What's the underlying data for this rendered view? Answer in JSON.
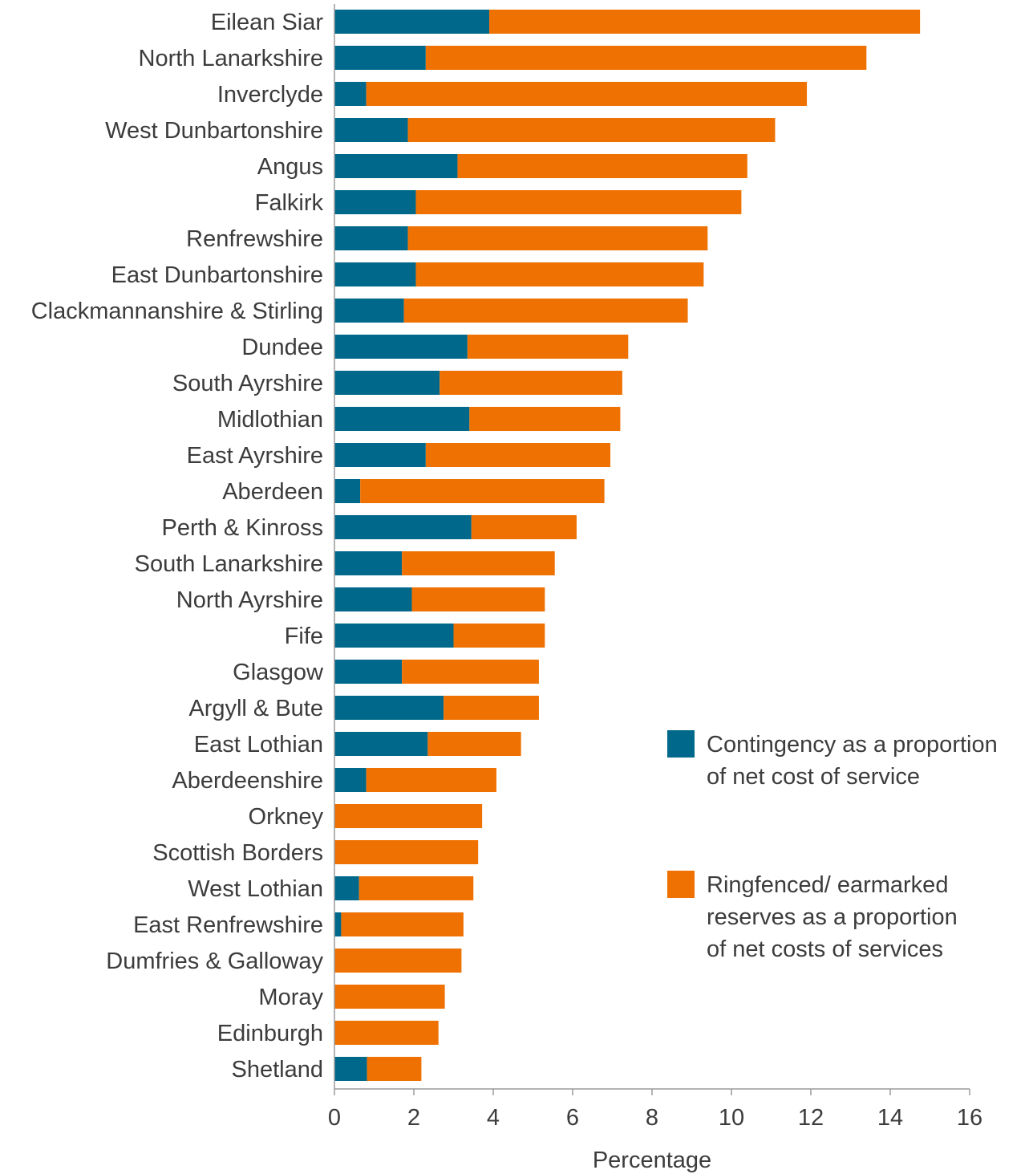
{
  "chart_data": {
    "type": "bar",
    "orientation": "horizontal",
    "stacked": true,
    "categories": [
      "Eilean Siar",
      "North Lanarkshire",
      "Inverclyde",
      "West Dunbartonshire",
      "Angus",
      "Falkirk",
      "Renfrewshire",
      "East Dunbartonshire",
      "Clackmannanshire & Stirling",
      "Dundee",
      "South Ayrshire",
      "Midlothian",
      "East Ayrshire",
      "Aberdeen",
      "Perth & Kinross",
      "South Lanarkshire",
      "North Ayrshire",
      "Fife",
      "Glasgow",
      "Argyll & Bute",
      "East Lothian",
      "Aberdeenshire",
      "Orkney",
      "Scottish Borders",
      "West Lothian",
      "East Renfrewshire",
      "Dumfries & Galloway",
      "Moray",
      "Edinburgh",
      "Shetland"
    ],
    "series": [
      {
        "name": "Contingency as a proportion of net cost of service",
        "color": "#00688b",
        "values": [
          3.9,
          2.3,
          0.8,
          1.85,
          3.1,
          2.05,
          1.85,
          2.05,
          1.75,
          3.35,
          2.65,
          3.4,
          2.3,
          0.65,
          3.45,
          1.7,
          1.95,
          3.0,
          1.7,
          2.75,
          2.35,
          0.8,
          0,
          0,
          0.62,
          0.17,
          0,
          0,
          0,
          0.82
        ]
      },
      {
        "name": "Ringfenced/ earmarked reserves as a proportion of net costs of services",
        "color": "#ef7102",
        "values": [
          10.85,
          11.1,
          11.1,
          9.25,
          7.3,
          8.2,
          7.55,
          7.25,
          7.15,
          4.05,
          4.6,
          3.8,
          4.65,
          6.15,
          2.65,
          3.85,
          3.35,
          2.3,
          3.45,
          2.4,
          2.35,
          3.28,
          3.72,
          3.62,
          2.88,
          3.08,
          3.2,
          2.78,
          2.62,
          1.37
        ]
      }
    ],
    "xlabel": "Percentage",
    "xlim": [
      0,
      16
    ],
    "xticks": [
      0,
      2,
      4,
      6,
      8,
      10,
      12,
      14,
      16
    ],
    "grid": false,
    "legend": {
      "placement": "right-middle",
      "entries": [
        {
          "lines": [
            "Contingency as a proportion",
            "of net cost of service"
          ],
          "color": "#00688b"
        },
        {
          "lines": [
            "Ringfenced/ earmarked",
            "reserves as a proportion",
            "of net costs of services"
          ],
          "color": "#ef7102"
        }
      ]
    }
  }
}
